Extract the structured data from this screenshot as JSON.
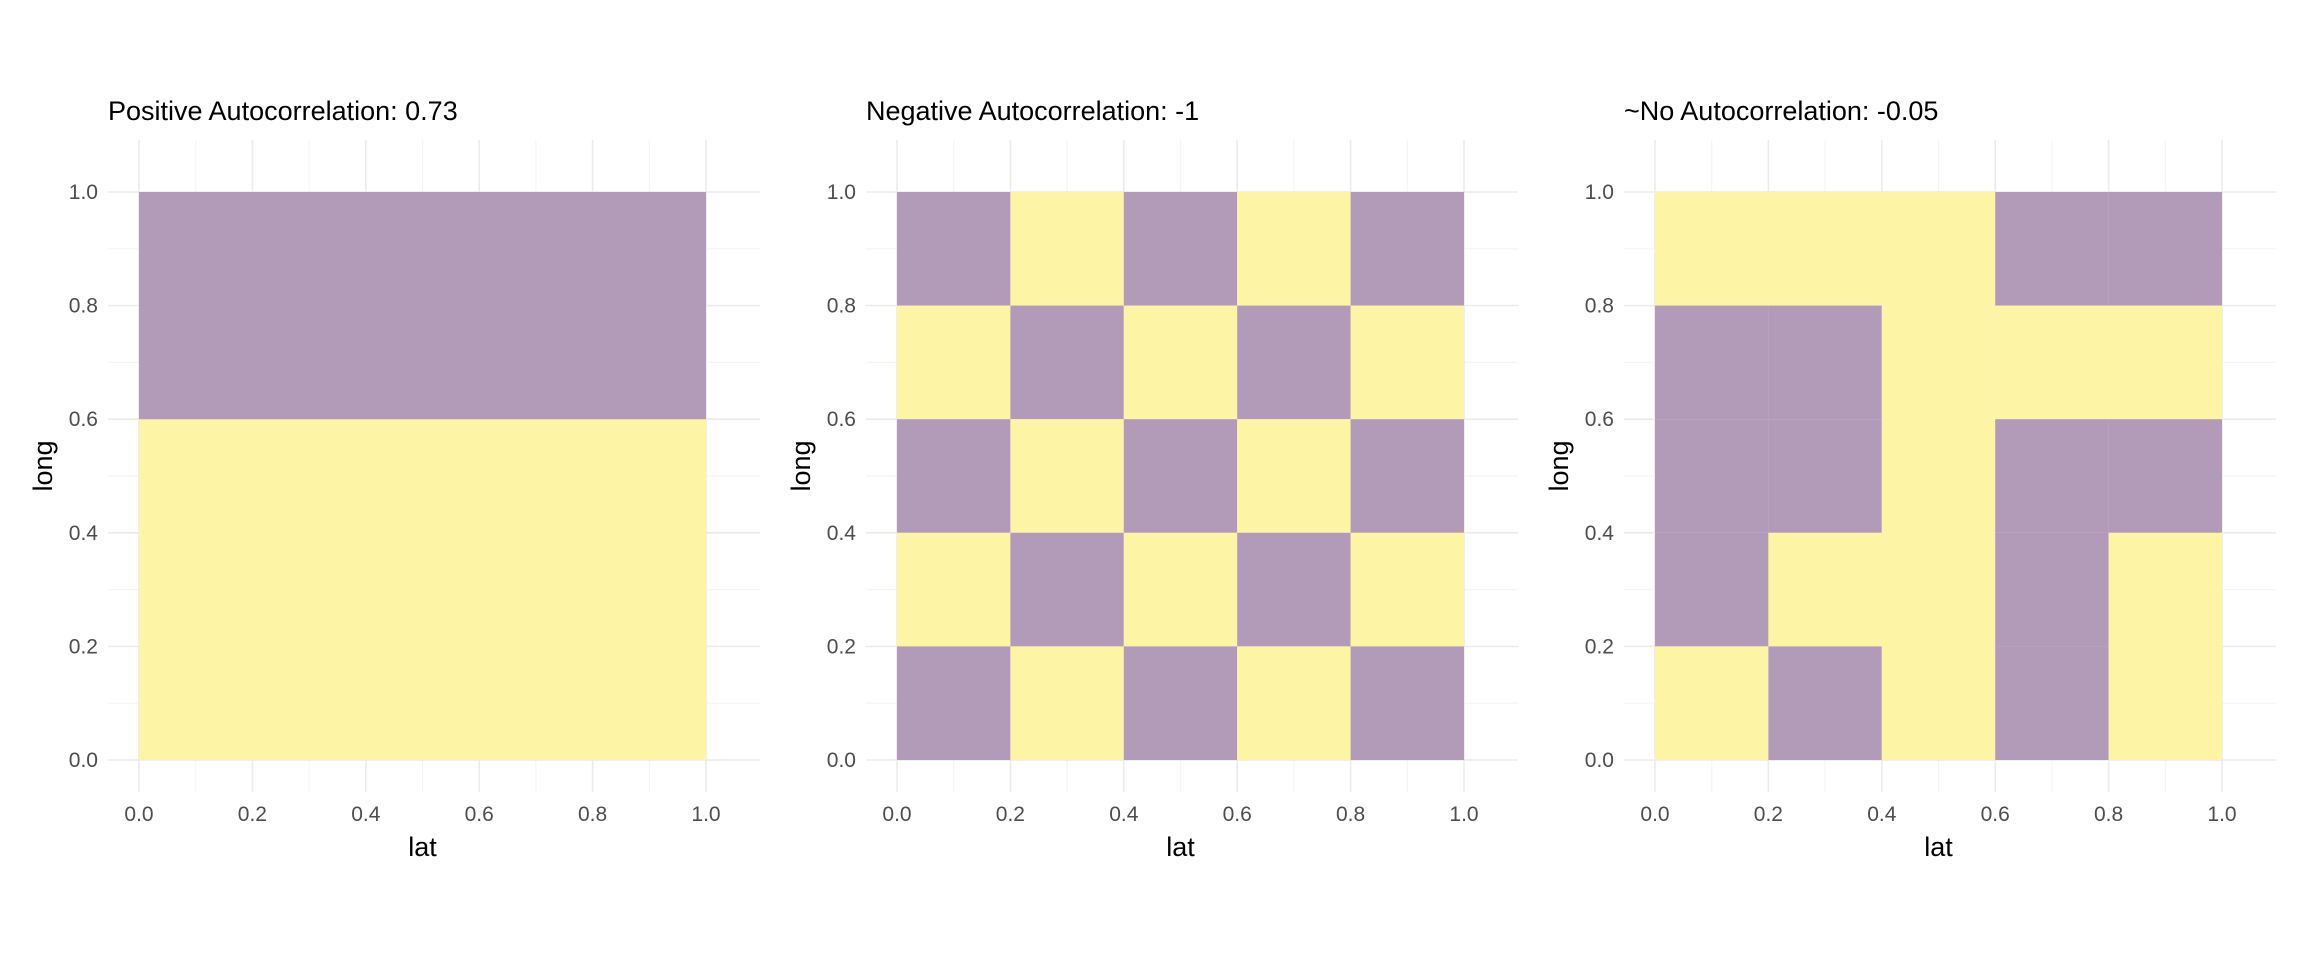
{
  "colors": {
    "low": "#fef4a6",
    "high": "#b29ab9",
    "background": "#ffffff"
  },
  "chart_data": [
    {
      "type": "heatmap",
      "title": "Positive Autocorrelation: 0.73",
      "xlabel": "lat",
      "ylabel": "long",
      "xlim": [
        0.0,
        1.0
      ],
      "ylim": [
        0.0,
        1.0
      ],
      "xticks": [
        "0.0",
        "0.2",
        "0.4",
        "0.6",
        "0.8",
        "1.0"
      ],
      "yticks": [
        "0.0",
        "0.2",
        "0.4",
        "0.6",
        "0.8",
        "1.0"
      ],
      "grid": true,
      "legend": "none",
      "cells": [
        {
          "x0": 0.0,
          "x1": 1.0,
          "y0": 0.0,
          "y1": 0.6,
          "value": 0
        },
        {
          "x0": 0.0,
          "x1": 1.0,
          "y0": 0.6,
          "y1": 1.0,
          "value": 1
        }
      ]
    },
    {
      "type": "heatmap",
      "title": "Negative Autocorrelation: -1",
      "xlabel": "lat",
      "ylabel": "long",
      "xlim": [
        0.0,
        1.0
      ],
      "ylim": [
        0.0,
        1.0
      ],
      "xticks": [
        "0.0",
        "0.2",
        "0.4",
        "0.6",
        "0.8",
        "1.0"
      ],
      "yticks": [
        "0.0",
        "0.2",
        "0.4",
        "0.6",
        "0.8",
        "1.0"
      ],
      "grid": true,
      "legend": "none",
      "cells": [
        {
          "x0": 0.0,
          "x1": 0.2,
          "y0": 0.8,
          "y1": 1.0,
          "value": 1
        },
        {
          "x0": 0.2,
          "x1": 0.4,
          "y0": 0.8,
          "y1": 1.0,
          "value": 0
        },
        {
          "x0": 0.4,
          "x1": 0.6,
          "y0": 0.8,
          "y1": 1.0,
          "value": 1
        },
        {
          "x0": 0.6,
          "x1": 0.8,
          "y0": 0.8,
          "y1": 1.0,
          "value": 0
        },
        {
          "x0": 0.8,
          "x1": 1.0,
          "y0": 0.8,
          "y1": 1.0,
          "value": 1
        },
        {
          "x0": 0.0,
          "x1": 0.2,
          "y0": 0.6,
          "y1": 0.8,
          "value": 0
        },
        {
          "x0": 0.2,
          "x1": 0.4,
          "y0": 0.6,
          "y1": 0.8,
          "value": 1
        },
        {
          "x0": 0.4,
          "x1": 0.6,
          "y0": 0.6,
          "y1": 0.8,
          "value": 0
        },
        {
          "x0": 0.6,
          "x1": 0.8,
          "y0": 0.6,
          "y1": 0.8,
          "value": 1
        },
        {
          "x0": 0.8,
          "x1": 1.0,
          "y0": 0.6,
          "y1": 0.8,
          "value": 0
        },
        {
          "x0": 0.0,
          "x1": 0.2,
          "y0": 0.4,
          "y1": 0.6,
          "value": 1
        },
        {
          "x0": 0.2,
          "x1": 0.4,
          "y0": 0.4,
          "y1": 0.6,
          "value": 0
        },
        {
          "x0": 0.4,
          "x1": 0.6,
          "y0": 0.4,
          "y1": 0.6,
          "value": 1
        },
        {
          "x0": 0.6,
          "x1": 0.8,
          "y0": 0.4,
          "y1": 0.6,
          "value": 0
        },
        {
          "x0": 0.8,
          "x1": 1.0,
          "y0": 0.4,
          "y1": 0.6,
          "value": 1
        },
        {
          "x0": 0.0,
          "x1": 0.2,
          "y0": 0.2,
          "y1": 0.4,
          "value": 0
        },
        {
          "x0": 0.2,
          "x1": 0.4,
          "y0": 0.2,
          "y1": 0.4,
          "value": 1
        },
        {
          "x0": 0.4,
          "x1": 0.6,
          "y0": 0.2,
          "y1": 0.4,
          "value": 0
        },
        {
          "x0": 0.6,
          "x1": 0.8,
          "y0": 0.2,
          "y1": 0.4,
          "value": 1
        },
        {
          "x0": 0.8,
          "x1": 1.0,
          "y0": 0.2,
          "y1": 0.4,
          "value": 0
        },
        {
          "x0": 0.0,
          "x1": 0.2,
          "y0": 0.0,
          "y1": 0.2,
          "value": 1
        },
        {
          "x0": 0.2,
          "x1": 0.4,
          "y0": 0.0,
          "y1": 0.2,
          "value": 0
        },
        {
          "x0": 0.4,
          "x1": 0.6,
          "y0": 0.0,
          "y1": 0.2,
          "value": 1
        },
        {
          "x0": 0.6,
          "x1": 0.8,
          "y0": 0.0,
          "y1": 0.2,
          "value": 0
        },
        {
          "x0": 0.8,
          "x1": 1.0,
          "y0": 0.0,
          "y1": 0.2,
          "value": 1
        }
      ]
    },
    {
      "type": "heatmap",
      "title": "~No Autocorrelation: -0.05",
      "xlabel": "lat",
      "ylabel": "long",
      "xlim": [
        0.0,
        1.0
      ],
      "ylim": [
        0.0,
        1.0
      ],
      "xticks": [
        "0.0",
        "0.2",
        "0.4",
        "0.6",
        "0.8",
        "1.0"
      ],
      "yticks": [
        "0.0",
        "0.2",
        "0.4",
        "0.6",
        "0.8",
        "1.0"
      ],
      "grid": true,
      "legend": "none",
      "cells": [
        {
          "x0": 0.0,
          "x1": 0.2,
          "y0": 0.8,
          "y1": 1.0,
          "value": 0
        },
        {
          "x0": 0.2,
          "x1": 0.4,
          "y0": 0.8,
          "y1": 1.0,
          "value": 0
        },
        {
          "x0": 0.4,
          "x1": 0.6,
          "y0": 0.8,
          "y1": 1.0,
          "value": 0
        },
        {
          "x0": 0.6,
          "x1": 0.8,
          "y0": 0.8,
          "y1": 1.0,
          "value": 1
        },
        {
          "x0": 0.8,
          "x1": 1.0,
          "y0": 0.8,
          "y1": 1.0,
          "value": 1
        },
        {
          "x0": 0.0,
          "x1": 0.2,
          "y0": 0.6,
          "y1": 0.8,
          "value": 1
        },
        {
          "x0": 0.2,
          "x1": 0.4,
          "y0": 0.6,
          "y1": 0.8,
          "value": 1
        },
        {
          "x0": 0.4,
          "x1": 0.6,
          "y0": 0.6,
          "y1": 0.8,
          "value": 0
        },
        {
          "x0": 0.6,
          "x1": 0.8,
          "y0": 0.6,
          "y1": 0.8,
          "value": 0
        },
        {
          "x0": 0.8,
          "x1": 1.0,
          "y0": 0.6,
          "y1": 0.8,
          "value": 0
        },
        {
          "x0": 0.0,
          "x1": 0.2,
          "y0": 0.4,
          "y1": 0.6,
          "value": 1
        },
        {
          "x0": 0.2,
          "x1": 0.4,
          "y0": 0.4,
          "y1": 0.6,
          "value": 1
        },
        {
          "x0": 0.4,
          "x1": 0.6,
          "y0": 0.4,
          "y1": 0.6,
          "value": 0
        },
        {
          "x0": 0.6,
          "x1": 0.8,
          "y0": 0.4,
          "y1": 0.6,
          "value": 1
        },
        {
          "x0": 0.8,
          "x1": 1.0,
          "y0": 0.4,
          "y1": 0.6,
          "value": 1
        },
        {
          "x0": 0.0,
          "x1": 0.2,
          "y0": 0.2,
          "y1": 0.4,
          "value": 1
        },
        {
          "x0": 0.2,
          "x1": 0.4,
          "y0": 0.2,
          "y1": 0.4,
          "value": 0
        },
        {
          "x0": 0.4,
          "x1": 0.6,
          "y0": 0.2,
          "y1": 0.4,
          "value": 0
        },
        {
          "x0": 0.6,
          "x1": 0.8,
          "y0": 0.2,
          "y1": 0.4,
          "value": 1
        },
        {
          "x0": 0.8,
          "x1": 1.0,
          "y0": 0.2,
          "y1": 0.4,
          "value": 0
        },
        {
          "x0": 0.0,
          "x1": 0.2,
          "y0": 0.0,
          "y1": 0.2,
          "value": 0
        },
        {
          "x0": 0.2,
          "x1": 0.4,
          "y0": 0.0,
          "y1": 0.2,
          "value": 1
        },
        {
          "x0": 0.4,
          "x1": 0.6,
          "y0": 0.0,
          "y1": 0.2,
          "value": 0
        },
        {
          "x0": 0.6,
          "x1": 0.8,
          "y0": 0.0,
          "y1": 0.2,
          "value": 1
        },
        {
          "x0": 0.8,
          "x1": 1.0,
          "y0": 0.0,
          "y1": 0.2,
          "value": 0
        }
      ]
    }
  ]
}
